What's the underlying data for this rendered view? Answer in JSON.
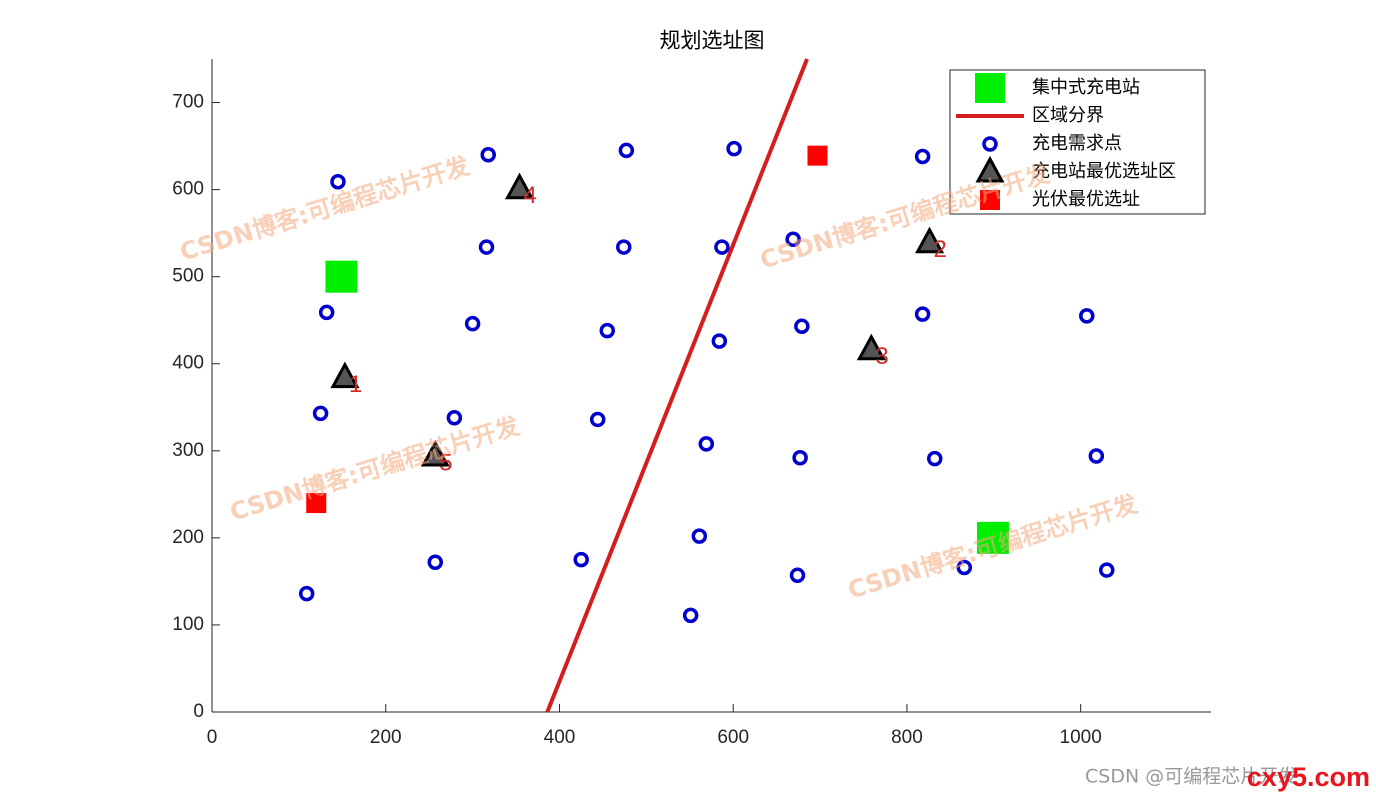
{
  "chart_data": {
    "type": "scatter",
    "title": "规划选址图",
    "xlim": [
      0,
      1150
    ],
    "ylim": [
      0,
      750
    ],
    "xticks": [
      0,
      200,
      400,
      600,
      800,
      1000
    ],
    "yticks": [
      0,
      100,
      200,
      300,
      400,
      500,
      600,
      700
    ],
    "grid": false,
    "legend": "northeast",
    "series": [
      {
        "name": "集中式充电站",
        "color": "#00ee00",
        "marker": "square-large",
        "x": [
          149,
          899
        ],
        "y": [
          500,
          200
        ]
      },
      {
        "name": "区域分界",
        "color": "#d41e1e",
        "marker": "line",
        "x": [
          386,
          685
        ],
        "y": [
          0,
          750
        ]
      },
      {
        "name": "充电需求点",
        "color": "#0000cc",
        "marker": "circle",
        "x": [
          318,
          477,
          601,
          145,
          818,
          316,
          474,
          587,
          669,
          132,
          300,
          455,
          584,
          679,
          818,
          1007,
          125,
          279,
          444,
          569,
          677,
          832,
          1018,
          109,
          257,
          425,
          561,
          674,
          866,
          1030,
          551
        ],
        "y": [
          640,
          645,
          647,
          609,
          638,
          534,
          534,
          534,
          543,
          459,
          446,
          438,
          426,
          443,
          457,
          455,
          343,
          338,
          336,
          308,
          292,
          291,
          294,
          136,
          172,
          175,
          202,
          157,
          166,
          163,
          111
        ]
      },
      {
        "name": "充电站最优选址区",
        "color": "#000000",
        "marker": "triangle",
        "x": [
          153,
          826,
          759,
          354,
          257
        ],
        "y": [
          384,
          539,
          416,
          601,
          294
        ],
        "labels": [
          "1",
          "2",
          "3",
          "4",
          "5"
        ]
      },
      {
        "name": "光伏最优选址",
        "color": "#ff0000",
        "marker": "square",
        "x": [
          697,
          120
        ],
        "y": [
          639,
          240
        ]
      }
    ],
    "watermark": "CSDN博客:可编程芯片开发",
    "footer": "CSDN @可编程芯片开发",
    "site": "cxy5.com"
  }
}
